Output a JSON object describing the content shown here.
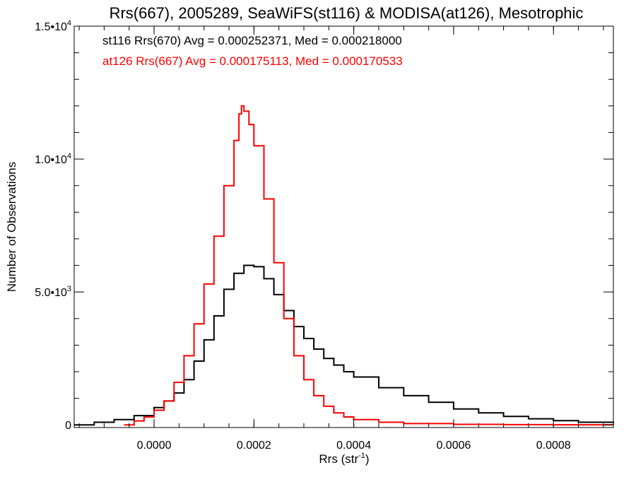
{
  "chart_data": {
    "type": "line",
    "title": "Rrs(667), 2005289, SeaWiFS(st116) & MODISA(at126), Mesotrophic",
    "xlabel": "Rrs (str",
    "xlabel_sup": "-1",
    "xlabel_close": ")",
    "ylabel": "Number of Observations",
    "xlim": [
      -0.00016,
      0.00092
    ],
    "ylim": [
      -100,
      15000
    ],
    "grid": false,
    "legend_placement": "top-left",
    "x_ticks": [
      {
        "value": 0.0,
        "label": "0.0000"
      },
      {
        "value": 0.0002,
        "label": "0.0002"
      },
      {
        "value": 0.0004,
        "label": "0.0004"
      },
      {
        "value": 0.0006,
        "label": "0.0006"
      },
      {
        "value": 0.0008,
        "label": "0.0008"
      }
    ],
    "y_ticks": [
      {
        "value": 0,
        "label": "0",
        "sup": ""
      },
      {
        "value": 5000,
        "label": "5.0•10",
        "sup": "3"
      },
      {
        "value": 10000,
        "label": "1.0•10",
        "sup": "4"
      },
      {
        "value": 15000,
        "label": "1.5•10",
        "sup": "4"
      }
    ],
    "series": [
      {
        "name": "st116 Rrs(670) Avg = 0.000252371, Med = 0.000218000",
        "color": "#000000",
        "points": [
          [
            -0.00016,
            0
          ],
          [
            -0.00012,
            100
          ],
          [
            -8e-05,
            200
          ],
          [
            -4e-05,
            350
          ],
          [
            0.0,
            650
          ],
          [
            2e-05,
            900
          ],
          [
            4e-05,
            1200
          ],
          [
            6e-05,
            1700
          ],
          [
            8e-05,
            2400
          ],
          [
            0.0001,
            3200
          ],
          [
            0.00012,
            4100
          ],
          [
            0.00014,
            5100
          ],
          [
            0.00016,
            5700
          ],
          [
            0.00018,
            6000
          ],
          [
            0.0002,
            5950
          ],
          [
            0.00022,
            5500
          ],
          [
            0.00024,
            4900
          ],
          [
            0.00026,
            4300
          ],
          [
            0.00028,
            3700
          ],
          [
            0.0003,
            3250
          ],
          [
            0.00032,
            2850
          ],
          [
            0.00034,
            2500
          ],
          [
            0.00036,
            2250
          ],
          [
            0.00038,
            2000
          ],
          [
            0.0004,
            1800
          ],
          [
            0.00045,
            1400
          ],
          [
            0.0005,
            1100
          ],
          [
            0.00055,
            850
          ],
          [
            0.0006,
            600
          ],
          [
            0.00065,
            450
          ],
          [
            0.0007,
            320
          ],
          [
            0.00075,
            230
          ],
          [
            0.0008,
            160
          ],
          [
            0.00085,
            100
          ],
          [
            0.00092,
            60
          ]
        ]
      },
      {
        "name": "at126 Rrs(667) Avg = 0.000175113, Med = 0.000170533",
        "color": "#ff0000",
        "points": [
          [
            -6e-05,
            0
          ],
          [
            -4e-05,
            150
          ],
          [
            -2e-05,
            300
          ],
          [
            0.0,
            550
          ],
          [
            2e-05,
            900
          ],
          [
            4e-05,
            1600
          ],
          [
            6e-05,
            2600
          ],
          [
            8e-05,
            3800
          ],
          [
            0.0001,
            5300
          ],
          [
            0.00012,
            7100
          ],
          [
            0.00014,
            9000
          ],
          [
            0.00016,
            10700
          ],
          [
            0.00017,
            11700
          ],
          [
            0.000175,
            12000
          ],
          [
            0.00018,
            11800
          ],
          [
            0.00019,
            11300
          ],
          [
            0.0002,
            10500
          ],
          [
            0.00022,
            8500
          ],
          [
            0.00024,
            6100
          ],
          [
            0.00026,
            4000
          ],
          [
            0.00028,
            2600
          ],
          [
            0.0003,
            1700
          ],
          [
            0.00032,
            1100
          ],
          [
            0.00034,
            700
          ],
          [
            0.00036,
            450
          ],
          [
            0.00038,
            300
          ],
          [
            0.0004,
            200
          ],
          [
            0.00045,
            100
          ],
          [
            0.0005,
            50
          ],
          [
            0.0006,
            20
          ],
          [
            0.0007,
            10
          ],
          [
            0.0008,
            5
          ],
          [
            0.00092,
            0
          ]
        ]
      }
    ]
  }
}
